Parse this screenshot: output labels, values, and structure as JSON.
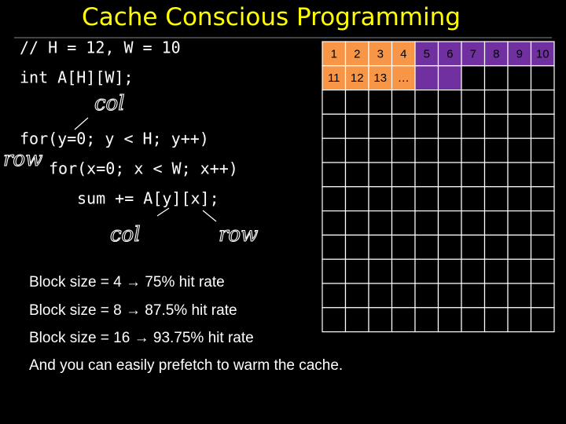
{
  "title": "Cache Conscious Programming",
  "code": [
    "// H = 12, W = 10",
    "int A[H][W];",
    "for(y=0; y < H; y++)",
    "for(x=0; x < W; x++)",
    "sum += A[y][x];"
  ],
  "annotations": [
    "col",
    "row",
    "col",
    "row"
  ],
  "bullets": [
    "Block size = 4 → 75% hit rate",
    "Block size = 8 → 87.5% hit rate",
    "Block size = 16 → 93.75%  hit rate",
    "And you can easily prefetch to warm the cache."
  ],
  "grid": {
    "rows": [
      [
        "1",
        "2",
        "3",
        "4",
        "5",
        "6",
        "7",
        "8",
        "9",
        "10"
      ],
      [
        "11",
        "12",
        "13",
        "…"
      ]
    ]
  }
}
